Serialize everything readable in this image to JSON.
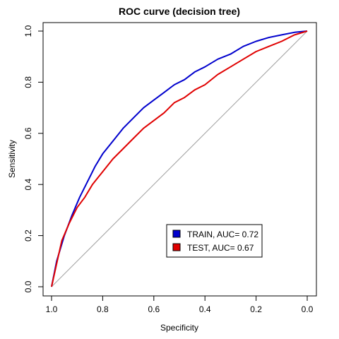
{
  "chart_data": {
    "type": "line",
    "title": "ROC curve (decision tree)",
    "xlabel": "Specificity",
    "ylabel": "Sensitivity",
    "xlim": [
      1.0,
      0.0
    ],
    "ylim": [
      0.0,
      1.0
    ],
    "x_reversed": true,
    "x_ticks": [
      1.0,
      0.8,
      0.6,
      0.4,
      0.2,
      0.0
    ],
    "x_tick_labels": [
      "1.0",
      "0.8",
      "0.6",
      "0.4",
      "0.2",
      "0.0"
    ],
    "y_ticks": [
      0.0,
      0.2,
      0.4,
      0.6,
      0.8,
      1.0
    ],
    "y_tick_labels": [
      "0.0",
      "0.2",
      "0.4",
      "0.6",
      "0.8",
      "1.0"
    ],
    "grid": false,
    "legend_position": "bottom-right",
    "reference_line": {
      "from": [
        1.0,
        0.0
      ],
      "to": [
        0.0,
        1.0
      ],
      "color": "#a0a0a0"
    },
    "series": [
      {
        "name": "TRAIN, AUC= 0.72",
        "color": "#0000cd",
        "x": [
          1.0,
          0.98,
          0.95,
          0.92,
          0.89,
          0.86,
          0.83,
          0.8,
          0.76,
          0.72,
          0.68,
          0.64,
          0.6,
          0.56,
          0.52,
          0.48,
          0.44,
          0.4,
          0.35,
          0.3,
          0.25,
          0.2,
          0.15,
          0.1,
          0.05,
          0.0
        ],
        "y": [
          0.0,
          0.1,
          0.2,
          0.28,
          0.35,
          0.41,
          0.47,
          0.52,
          0.57,
          0.62,
          0.66,
          0.7,
          0.73,
          0.76,
          0.79,
          0.81,
          0.84,
          0.86,
          0.89,
          0.91,
          0.94,
          0.96,
          0.975,
          0.985,
          0.995,
          1.0
        ]
      },
      {
        "name": "TEST, AUC= 0.67",
        "color": "#e00000",
        "x": [
          1.0,
          0.98,
          0.96,
          0.93,
          0.9,
          0.87,
          0.84,
          0.8,
          0.76,
          0.72,
          0.68,
          0.64,
          0.6,
          0.56,
          0.52,
          0.48,
          0.44,
          0.4,
          0.35,
          0.3,
          0.25,
          0.2,
          0.15,
          0.1,
          0.05,
          0.0
        ],
        "y": [
          0.0,
          0.09,
          0.18,
          0.25,
          0.31,
          0.35,
          0.4,
          0.45,
          0.5,
          0.54,
          0.58,
          0.62,
          0.65,
          0.68,
          0.72,
          0.74,
          0.77,
          0.79,
          0.83,
          0.86,
          0.89,
          0.92,
          0.94,
          0.96,
          0.985,
          1.0
        ]
      }
    ]
  }
}
